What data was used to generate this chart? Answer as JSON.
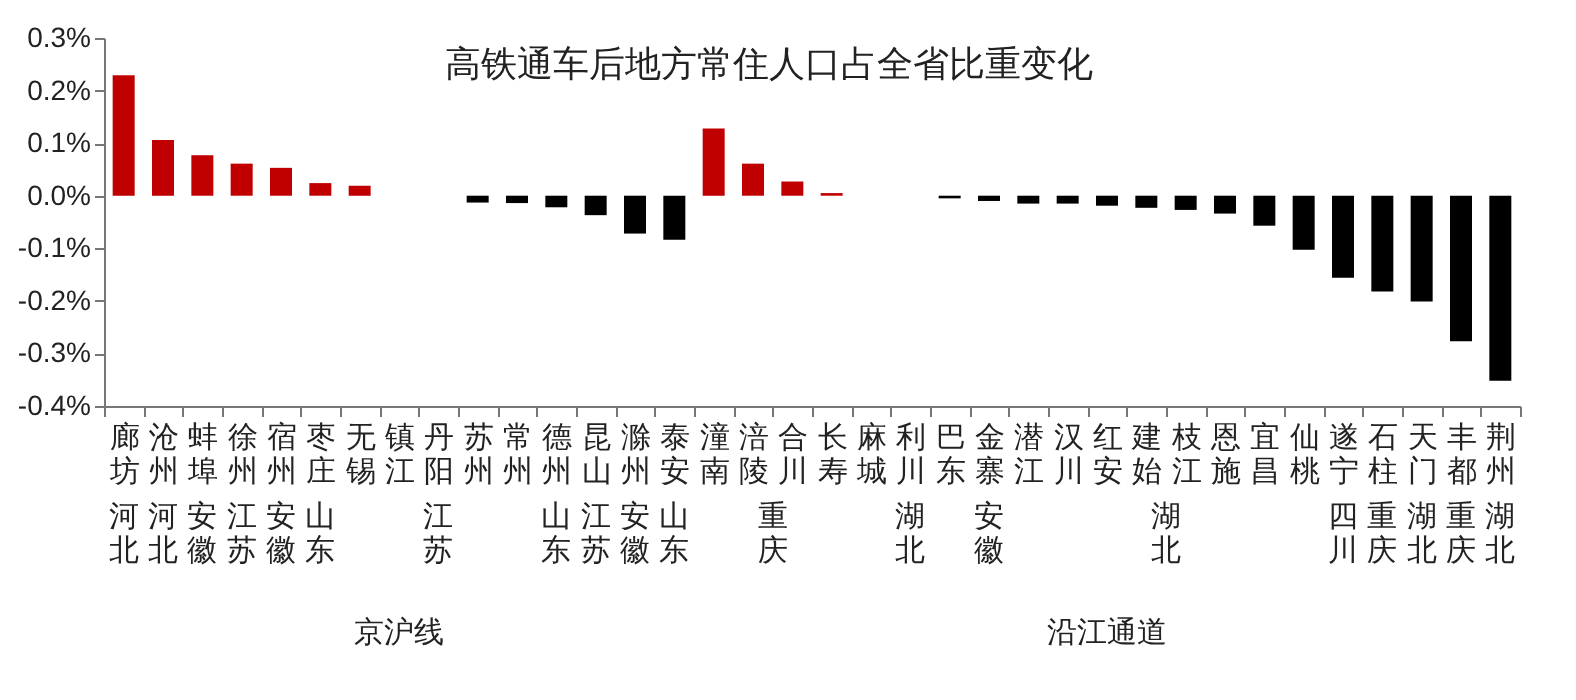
{
  "chart_data": {
    "type": "bar",
    "title": "高铁通车后地方常住人口占全省比重变化",
    "categories": [
      "廊坊",
      "沧州",
      "蚌埠",
      "徐州",
      "宿州",
      "枣庄",
      "无锡",
      "镇江",
      "丹阳",
      "苏州",
      "常州",
      "德州",
      "昆山",
      "滁州",
      "泰安",
      "潼南",
      "涪陵",
      "合川",
      "长寿",
      "麻城",
      "利川",
      "巴东",
      "金寨",
      "潜江",
      "汉川",
      "红安",
      "建始",
      "枝江",
      "恩施",
      "宜昌",
      "仙桃",
      "遂宁",
      "石柱",
      "天门",
      "丰都",
      "荆州"
    ],
    "values": [
      0.229,
      0.106,
      0.077,
      0.061,
      0.053,
      0.024,
      0.019,
      0,
      0,
      -0.013,
      -0.014,
      -0.022,
      -0.037,
      -0.072,
      -0.084,
      0.128,
      0.061,
      0.027,
      0.005,
      0,
      0,
      -0.005,
      -0.01,
      -0.015,
      -0.015,
      -0.019,
      -0.023,
      -0.027,
      -0.034,
      -0.057,
      -0.103,
      -0.156,
      -0.182,
      -0.201,
      -0.277,
      -0.352
    ],
    "colors": [
      "#c00000",
      "#c00000",
      "#c00000",
      "#c00000",
      "#c00000",
      "#c00000",
      "#c00000",
      "#000000",
      "#000000",
      "#000000",
      "#000000",
      "#000000",
      "#000000",
      "#000000",
      "#000000",
      "#c00000",
      "#c00000",
      "#c00000",
      "#c00000",
      "#000000",
      "#000000",
      "#000000",
      "#000000",
      "#000000",
      "#000000",
      "#000000",
      "#000000",
      "#000000",
      "#000000",
      "#000000",
      "#000000",
      "#000000",
      "#000000",
      "#000000",
      "#000000",
      "#000000"
    ],
    "ylim": [
      -0.4,
      0.3
    ],
    "yticks": [
      {
        "value": 0.3,
        "label": "0.3%"
      },
      {
        "value": 0.2,
        "label": "0.2%"
      },
      {
        "value": 0.1,
        "label": "0.1%"
      },
      {
        "value": 0,
        "label": "0.0%"
      },
      {
        "value": -0.1,
        "label": "-0.1%"
      },
      {
        "value": -0.2,
        "label": "-0.2%"
      },
      {
        "value": -0.3,
        "label": "-0.3%"
      },
      {
        "value": -0.4,
        "label": "-0.4%"
      }
    ],
    "grid": false,
    "annotations": [
      "河北",
      "河北",
      "安徽",
      "江苏",
      "安徽",
      "山东",
      "江苏",
      "山东",
      "江苏",
      "安徽",
      "山东",
      "重庆",
      "湖北",
      "安徽",
      "湖北",
      "四川",
      "重庆",
      "湖北",
      "重庆",
      "湖北",
      "京沪线",
      "沿江通道"
    ]
  }
}
